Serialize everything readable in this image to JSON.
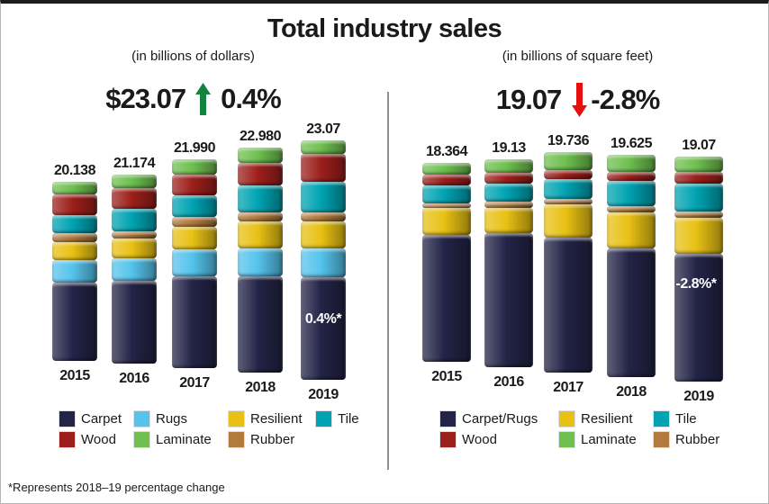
{
  "title": "Total industry sales",
  "footnote": "*Represents 2018–19 percentage change",
  "colors": {
    "carpet": "#232347",
    "rugs": "#55c3ec",
    "resilient": "#e8c114",
    "tile": "#00a3b2",
    "wood": "#9c1f1b",
    "laminate": "#6ec04f",
    "rubber": "#b27a3d",
    "up_arrow": "#15833d",
    "down_arrow": "#e60f0f",
    "text": "#1a1a1a"
  },
  "panels": {
    "dollars": {
      "subtitle": "(in billions of dollars)",
      "headline": {
        "value": "$23.07",
        "direction": "up",
        "change": "0.4%"
      },
      "legend_columns": [
        [
          {
            "label": "Carpet",
            "key": "carpet"
          },
          {
            "label": "Wood",
            "key": "wood"
          }
        ],
        [
          {
            "label": "Rugs",
            "key": "rugs"
          },
          {
            "label": "Laminate",
            "key": "laminate"
          }
        ],
        [
          {
            "label": "Resilient",
            "key": "resilient"
          },
          {
            "label": "Rubber",
            "key": "rubber"
          }
        ],
        [
          {
            "label": "Tile",
            "key": "tile"
          }
        ]
      ]
    },
    "squarefeet": {
      "subtitle": "(in billions of square feet)",
      "headline": {
        "value": "19.07",
        "direction": "down",
        "change": "-2.8%"
      },
      "legend_columns": [
        [
          {
            "label": "Carpet/Rugs",
            "key": "carpet"
          },
          {
            "label": "Wood",
            "key": "wood"
          }
        ],
        [
          {
            "label": "Resilient",
            "key": "resilient"
          },
          {
            "label": "Laminate",
            "key": "laminate"
          }
        ],
        [
          {
            "label": "Tile",
            "key": "tile"
          },
          {
            "label": "Rubber",
            "key": "rubber"
          }
        ]
      ]
    }
  },
  "chart_data": [
    {
      "type": "bar",
      "stacked": true,
      "panel": "dollars",
      "title": "(in billions of dollars)",
      "categories": [
        "2015",
        "2016",
        "2017",
        "2018",
        "2019"
      ],
      "totals": [
        20.138,
        21.174,
        21.99,
        22.98,
        23.07
      ],
      "total_labels": [
        "20.138",
        "21.174",
        "21.990",
        "22.980",
        "23.07"
      ],
      "series": [
        {
          "name": "Carpet",
          "key": "carpet",
          "values": [
            8.8,
            9.26,
            9.67,
            9.83,
            9.9
          ]
        },
        {
          "name": "Rugs",
          "key": "rugs",
          "values": [
            2.53,
            2.54,
            2.84,
            2.85,
            2.75
          ]
        },
        {
          "name": "Resilient",
          "key": "resilient",
          "values": [
            2.02,
            2.24,
            2.37,
            2.76,
            2.58
          ]
        },
        {
          "name": "Rubber",
          "key": "rubber",
          "values": [
            1.01,
            0.81,
            1.04,
            0.92,
            0.86
          ]
        },
        {
          "name": "Tile",
          "key": "tile",
          "values": [
            2.02,
            2.44,
            2.28,
            2.76,
            3.01
          ]
        },
        {
          "name": "Wood",
          "key": "wood",
          "values": [
            2.33,
            2.34,
            2.18,
            2.3,
            2.67
          ]
        },
        {
          "name": "Laminate",
          "key": "laminate",
          "values": [
            1.42,
            1.53,
            1.61,
            1.56,
            1.29
          ]
        }
      ],
      "annotation": {
        "text": "0.4%*",
        "category": "2019"
      },
      "legend_position": "bottom",
      "grid": false
    },
    {
      "type": "bar",
      "stacked": true,
      "panel": "squarefeet",
      "title": "(in billions of square feet)",
      "categories": [
        "2015",
        "2016",
        "2017",
        "2018",
        "2019"
      ],
      "totals": [
        18.364,
        19.13,
        19.736,
        19.625,
        19.07
      ],
      "total_labels": [
        "18.364",
        "19.13",
        "19.736",
        "19.625",
        "19.07"
      ],
      "series": [
        {
          "name": "Carpet/Rugs",
          "key": "carpet",
          "values": [
            11.72,
            12.34,
            12.08,
            11.36,
            10.84
          ]
        },
        {
          "name": "Resilient",
          "key": "resilient",
          "values": [
            2.49,
            2.32,
            2.98,
            3.18,
            3.08
          ]
        },
        {
          "name": "Rubber",
          "key": "rubber",
          "values": [
            0.42,
            0.58,
            0.48,
            0.56,
            0.54
          ]
        },
        {
          "name": "Tile",
          "key": "tile",
          "values": [
            1.66,
            1.66,
            1.77,
            2.23,
            2.31
          ]
        },
        {
          "name": "Wood",
          "key": "wood",
          "values": [
            1.0,
            0.99,
            0.81,
            0.79,
            1.0
          ]
        },
        {
          "name": "Laminate",
          "key": "laminate",
          "values": [
            1.08,
            1.24,
            1.61,
            1.51,
            1.31
          ]
        }
      ],
      "annotation": {
        "text": "-2.8%*",
        "category": "2019"
      },
      "legend_position": "bottom",
      "grid": false
    }
  ]
}
